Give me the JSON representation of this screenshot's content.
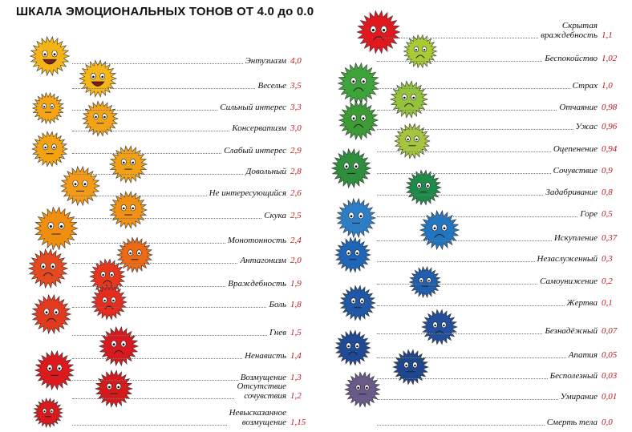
{
  "title": "ШКАЛА  ЭМОЦИОНАЛЬНЫХ ТОНОВ ОТ 4.0 до 0.0",
  "left": [
    {
      "name": "Энтузиазм",
      "value": "4,0"
    },
    {
      "name": "Веселье",
      "value": "3,5"
    },
    {
      "name": "Сильный интерес",
      "value": "3,3"
    },
    {
      "name": "Консерватизм",
      "value": "3,0"
    },
    {
      "name": "Слабый интерес",
      "value": "2,9"
    },
    {
      "name": "Довольный",
      "value": "2,8"
    },
    {
      "name": "Не интересующийся",
      "value": "2,6"
    },
    {
      "name": "Скука",
      "value": "2,5"
    },
    {
      "name": "Монотонность",
      "value": "2,4"
    },
    {
      "name": "Антагонизм",
      "value": "2,0"
    },
    {
      "name": "Враждебность",
      "value": "1,9"
    },
    {
      "name": "Боль",
      "value": "1,8"
    },
    {
      "name": "Гнев",
      "value": "1,5"
    },
    {
      "name": "Ненависть",
      "value": "1,4"
    },
    {
      "name": "Возмущение",
      "value": "1,3"
    },
    {
      "name": "Отсутствие\nсочувствия",
      "value": "1,2"
    },
    {
      "name": "Невысказанное\nвозмущение",
      "value": "1,15"
    }
  ],
  "right": [
    {
      "name": "Скрытая\nвраждебность",
      "value": "1,1"
    },
    {
      "name": "Беспокойство",
      "value": "1,02"
    },
    {
      "name": "Страх",
      "value": "1,0"
    },
    {
      "name": "Отчаяние",
      "value": "0,98"
    },
    {
      "name": "Ужас",
      "value": "0,96"
    },
    {
      "name": "Оцепенение",
      "value": "0,94"
    },
    {
      "name": "Сочувствие",
      "value": "0,9"
    },
    {
      "name": "Задабривание",
      "value": "0,8"
    },
    {
      "name": "Горе",
      "value": "0,5"
    },
    {
      "name": "Искупление",
      "value": "0,37"
    },
    {
      "name": "Незаслуженный",
      "value": "0,3"
    },
    {
      "name": "Самоунижение",
      "value": "0,2"
    },
    {
      "name": "Жертва",
      "value": "0,1"
    },
    {
      "name": "Безнадёжный",
      "value": "0,07"
    },
    {
      "name": "Апатия",
      "value": "0,05"
    },
    {
      "name": "Бесполезный",
      "value": "0,03"
    },
    {
      "name": "Умирание",
      "value": "0,01"
    },
    {
      "name": "Смерть тела",
      "value": "0,0"
    }
  ],
  "colors": {
    "value": "#c0161a",
    "text": "#111111"
  }
}
